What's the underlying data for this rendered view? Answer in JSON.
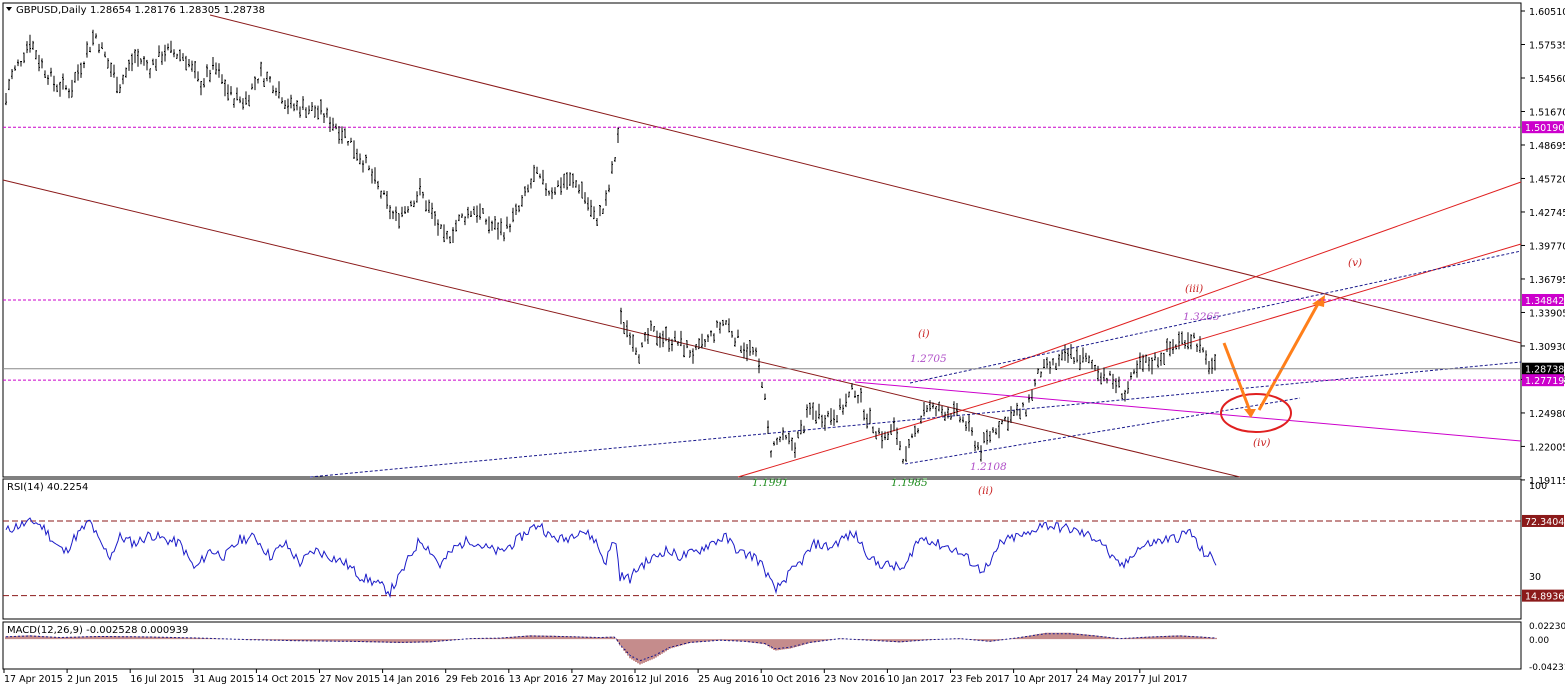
{
  "colors": {
    "bar": "#000000",
    "channel": "#8B1A1A",
    "uptrend": "#E02020",
    "dotted": "#1A1A8C",
    "magenta": "#CC00CC",
    "orange": "#FF7F1A",
    "label_purple": "#B050C8",
    "label_green": "#1E8C1E",
    "label_red": "#C81E1E",
    "rsi_line": "#1A1AC8",
    "macd_hist": "#8B1A1A"
  },
  "chart_data": [
    {
      "type": "ohlc",
      "title": "GBPUSD,Daily",
      "ohlc_readout": "1.28654 1.28176 1.28305 1.28738",
      "y_ticks": [
        "1.60510",
        "1.57535",
        "1.54560",
        "1.51670",
        "1.48695",
        "1.45720",
        "1.42745",
        "1.39770",
        "1.36795",
        "1.33905",
        "1.30930",
        "1.27955",
        "1.24980",
        "1.22005",
        "1.19115"
      ],
      "ylim": [
        1.1912,
        1.6051
      ],
      "x_ticks": [
        "17 Apr 2015",
        "2 Jun 2015",
        "16 Jul 2015",
        "31 Aug 2015",
        "14 Oct 2015",
        "27 Nov 2015",
        "14 Jan 2016",
        "29 Feb 2016",
        "13 Apr 2016",
        "27 May 2016",
        "12 Jul 2016",
        "25 Aug 2016",
        "10 Oct 2016",
        "23 Nov 2016",
        "10 Jan 2017",
        "23 Feb 2017",
        "10 Apr 2017",
        "24 May 2017",
        "7 Jul 2017"
      ],
      "price_badges": [
        {
          "label": "1.50190",
          "value": 1.5019,
          "style": "magenta"
        },
        {
          "label": "1.34842",
          "value": 1.34842,
          "style": "magenta"
        },
        {
          "label": "1.28738",
          "value": 1.28738,
          "style": "current"
        },
        {
          "label": "1.27719",
          "value": 1.27719,
          "style": "magenta"
        }
      ],
      "series_close": [
        [
          0,
          1.5
        ],
        [
          10,
          1.545
        ],
        [
          20,
          1.56
        ],
        [
          30,
          1.58
        ],
        [
          40,
          1.56
        ],
        [
          55,
          1.54
        ],
        [
          70,
          1.535
        ],
        [
          85,
          1.565
        ],
        [
          95,
          1.585
        ],
        [
          110,
          1.555
        ],
        [
          120,
          1.54
        ],
        [
          135,
          1.565
        ],
        [
          150,
          1.555
        ],
        [
          165,
          1.57
        ],
        [
          185,
          1.565
        ],
        [
          200,
          1.54
        ],
        [
          215,
          1.555
        ],
        [
          230,
          1.53
        ],
        [
          245,
          1.525
        ],
        [
          260,
          1.55
        ],
        [
          275,
          1.54
        ],
        [
          290,
          1.52
        ],
        [
          305,
          1.52
        ],
        [
          320,
          1.515
        ],
        [
          335,
          1.505
        ],
        [
          350,
          1.49
        ],
        [
          365,
          1.47
        ],
        [
          380,
          1.445
        ],
        [
          395,
          1.42
        ],
        [
          410,
          1.435
        ],
        [
          420,
          1.445
        ],
        [
          435,
          1.42
        ],
        [
          445,
          1.4
        ],
        [
          460,
          1.42
        ],
        [
          475,
          1.43
        ],
        [
          490,
          1.415
        ],
        [
          505,
          1.41
        ],
        [
          520,
          1.43
        ],
        [
          535,
          1.46
        ],
        [
          550,
          1.445
        ],
        [
          565,
          1.455
        ],
        [
          580,
          1.45
        ],
        [
          595,
          1.42
        ],
        [
          605,
          1.43
        ],
        [
          615,
          1.475
        ],
        [
          618,
          1.495
        ],
        [
          621,
          1.33
        ],
        [
          630,
          1.32
        ],
        [
          640,
          1.3
        ],
        [
          650,
          1.32
        ],
        [
          665,
          1.315
        ],
        [
          680,
          1.31
        ],
        [
          695,
          1.3
        ],
        [
          710,
          1.315
        ],
        [
          725,
          1.33
        ],
        [
          740,
          1.31
        ],
        [
          755,
          1.3
        ],
        [
          763,
          1.275
        ],
        [
          770,
          1.215
        ],
        [
          780,
          1.225
        ],
        [
          795,
          1.22
        ],
        [
          810,
          1.25
        ],
        [
          825,
          1.245
        ],
        [
          840,
          1.25
        ],
        [
          855,
          1.27
        ],
        [
          870,
          1.24
        ],
        [
          885,
          1.225
        ],
        [
          895,
          1.235
        ],
        [
          905,
          1.205
        ],
        [
          915,
          1.23
        ],
        [
          925,
          1.255
        ],
        [
          935,
          1.25
        ],
        [
          950,
          1.25
        ],
        [
          965,
          1.24
        ],
        [
          980,
          1.215
        ],
        [
          995,
          1.235
        ],
        [
          1010,
          1.245
        ],
        [
          1025,
          1.25
        ],
        [
          1040,
          1.285
        ],
        [
          1055,
          1.29
        ],
        [
          1070,
          1.3
        ],
        [
          1085,
          1.295
        ],
        [
          1100,
          1.285
        ],
        [
          1115,
          1.275
        ],
        [
          1125,
          1.265
        ],
        [
          1140,
          1.29
        ],
        [
          1155,
          1.295
        ],
        [
          1170,
          1.305
        ],
        [
          1185,
          1.315
        ],
        [
          1195,
          1.315
        ],
        [
          1205,
          1.295
        ],
        [
          1216,
          1.287
        ]
      ],
      "annotations": [
        {
          "text": "1.2705",
          "value": 1.2705,
          "style": "purple"
        },
        {
          "text": "1.3265",
          "value": 1.3265,
          "style": "purple"
        },
        {
          "text": "1.2108",
          "value": 1.2108,
          "style": "purple"
        },
        {
          "text": "1.1991",
          "value": 1.1991,
          "style": "green"
        },
        {
          "text": "1.1985",
          "value": 1.1985,
          "style": "green"
        },
        {
          "text": "(i)",
          "style": "wave"
        },
        {
          "text": "(ii)",
          "style": "wave"
        },
        {
          "text": "(iii)",
          "style": "wave"
        },
        {
          "text": "(iv)",
          "style": "wave"
        },
        {
          "text": "(v)",
          "style": "wave"
        }
      ]
    },
    {
      "type": "line",
      "title": "RSI(14) 40.2254",
      "y_ticks": [
        "100",
        "70",
        "30",
        "0"
      ],
      "levels": [
        {
          "label": "72.3404",
          "value": 72.3404
        },
        {
          "label": "14.8936",
          "value": 14.8936
        }
      ],
      "values": [
        [
          0,
          62
        ],
        [
          15,
          68
        ],
        [
          25,
          70
        ],
        [
          35,
          72
        ],
        [
          45,
          66
        ],
        [
          55,
          55
        ],
        [
          65,
          48
        ],
        [
          75,
          60
        ],
        [
          90,
          72
        ],
        [
          100,
          55
        ],
        [
          110,
          45
        ],
        [
          120,
          60
        ],
        [
          135,
          55
        ],
        [
          150,
          62
        ],
        [
          165,
          58
        ],
        [
          180,
          55
        ],
        [
          195,
          35
        ],
        [
          210,
          50
        ],
        [
          225,
          45
        ],
        [
          240,
          58
        ],
        [
          255,
          60
        ],
        [
          270,
          45
        ],
        [
          285,
          55
        ],
        [
          300,
          40
        ],
        [
          315,
          50
        ],
        [
          330,
          45
        ],
        [
          345,
          40
        ],
        [
          360,
          30
        ],
        [
          375,
          25
        ],
        [
          390,
          18
        ],
        [
          400,
          30
        ],
        [
          410,
          45
        ],
        [
          420,
          58
        ],
        [
          430,
          50
        ],
        [
          440,
          38
        ],
        [
          455,
          52
        ],
        [
          470,
          58
        ],
        [
          485,
          52
        ],
        [
          500,
          48
        ],
        [
          515,
          56
        ],
        [
          530,
          66
        ],
        [
          540,
          70
        ],
        [
          550,
          60
        ],
        [
          565,
          58
        ],
        [
          580,
          66
        ],
        [
          595,
          58
        ],
        [
          605,
          40
        ],
        [
          615,
          60
        ],
        [
          620,
          30
        ],
        [
          630,
          28
        ],
        [
          640,
          38
        ],
        [
          650,
          42
        ],
        [
          665,
          50
        ],
        [
          680,
          45
        ],
        [
          695,
          48
        ],
        [
          710,
          55
        ],
        [
          725,
          60
        ],
        [
          740,
          48
        ],
        [
          755,
          45
        ],
        [
          765,
          35
        ],
        [
          775,
          18
        ],
        [
          785,
          28
        ],
        [
          800,
          40
        ],
        [
          815,
          55
        ],
        [
          830,
          52
        ],
        [
          845,
          60
        ],
        [
          855,
          62
        ],
        [
          865,
          50
        ],
        [
          875,
          40
        ],
        [
          890,
          38
        ],
        [
          905,
          35
        ],
        [
          915,
          55
        ],
        [
          925,
          60
        ],
        [
          935,
          55
        ],
        [
          950,
          52
        ],
        [
          965,
          45
        ],
        [
          980,
          35
        ],
        [
          990,
          38
        ],
        [
          1000,
          55
        ],
        [
          1015,
          60
        ],
        [
          1030,
          62
        ],
        [
          1040,
          70
        ],
        [
          1055,
          68
        ],
        [
          1070,
          66
        ],
        [
          1085,
          62
        ],
        [
          1100,
          58
        ],
        [
          1115,
          40
        ],
        [
          1125,
          38
        ],
        [
          1135,
          50
        ],
        [
          1150,
          55
        ],
        [
          1165,
          58
        ],
        [
          1180,
          60
        ],
        [
          1190,
          65
        ],
        [
          1200,
          50
        ],
        [
          1210,
          45
        ],
        [
          1216,
          40
        ]
      ]
    },
    {
      "type": "bar",
      "title": "MACD(12,26,9) -0.002528 0.000939",
      "y_ticks": [
        "0.022307",
        "0.00",
        "-0.042312"
      ],
      "ylim": [
        -0.042312,
        0.022307
      ],
      "values": [
        [
          0,
          0.004
        ],
        [
          30,
          0.006
        ],
        [
          60,
          0.003
        ],
        [
          100,
          0.005
        ],
        [
          150,
          0.004
        ],
        [
          200,
          0.002
        ],
        [
          250,
          -0.001
        ],
        [
          300,
          -0.003
        ],
        [
          350,
          -0.004
        ],
        [
          400,
          -0.006
        ],
        [
          430,
          -0.005
        ],
        [
          470,
          0.001
        ],
        [
          500,
          0.002
        ],
        [
          530,
          0.006
        ],
        [
          560,
          0.005
        ],
        [
          600,
          0.003
        ],
        [
          615,
          0.004
        ],
        [
          620,
          -0.01
        ],
        [
          630,
          -0.03
        ],
        [
          640,
          -0.04
        ],
        [
          655,
          -0.03
        ],
        [
          670,
          -0.015
        ],
        [
          690,
          -0.006
        ],
        [
          720,
          -0.002
        ],
        [
          745,
          -0.004
        ],
        [
          765,
          -0.008
        ],
        [
          775,
          -0.018
        ],
        [
          790,
          -0.015
        ],
        [
          810,
          -0.006
        ],
        [
          840,
          0.001
        ],
        [
          870,
          -0.002
        ],
        [
          900,
          -0.005
        ],
        [
          930,
          -0.001
        ],
        [
          960,
          0.001
        ],
        [
          990,
          -0.004
        ],
        [
          1020,
          0.003
        ],
        [
          1045,
          0.01
        ],
        [
          1070,
          0.01
        ],
        [
          1095,
          0.006
        ],
        [
          1120,
          0.001
        ],
        [
          1150,
          0.004
        ],
        [
          1180,
          0.006
        ],
        [
          1200,
          0.004
        ],
        [
          1216,
          0.002
        ]
      ]
    }
  ]
}
